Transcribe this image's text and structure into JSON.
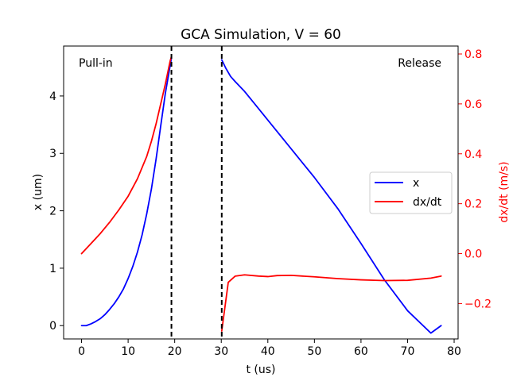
{
  "chart_data": {
    "type": "line",
    "title": "GCA Simulation, V = 60",
    "xlabel": "t (us)",
    "ylabel_left": "x (um)",
    "ylabel_right": "dx/dt (m/s)",
    "xlim": [
      -3.85,
      80.85
    ],
    "ylim_left": [
      -0.232,
      4.87
    ],
    "ylim_right": [
      -0.3418,
      0.8318
    ],
    "x_ticks": [
      0,
      10,
      20,
      30,
      40,
      50,
      60,
      70,
      80
    ],
    "y_ticks_left": [
      0,
      1,
      2,
      3,
      4
    ],
    "y_ticks_right": [
      -0.2,
      0.0,
      0.2,
      0.4,
      0.6,
      0.8
    ],
    "tick_labels_right": [
      "−0.2",
      "0.0",
      "0.2",
      "0.4",
      "0.6",
      "0.8"
    ],
    "grid": false,
    "legend_position": "center-right",
    "vlines": [
      19.3,
      30.1
    ],
    "annotations": [
      {
        "text": "Pull-in",
        "position": "top-left"
      },
      {
        "text": "Release",
        "position": "top-right"
      }
    ],
    "series": [
      {
        "name": "x",
        "color": "#0000ff",
        "axis": "left",
        "segments": [
          {
            "x": [
              0,
              1,
              2,
              3,
              4,
              5,
              6,
              7,
              8,
              9,
              10,
              11,
              12,
              13,
              14,
              15,
              16,
              17,
              18,
              19.3
            ],
            "y": [
              0.0,
              0.0,
              0.03,
              0.07,
              0.12,
              0.19,
              0.28,
              0.38,
              0.5,
              0.64,
              0.82,
              1.03,
              1.28,
              1.58,
              1.95,
              2.38,
              2.9,
              3.48,
              4.05,
              4.66
            ]
          },
          {
            "x": [
              30.1,
              31,
              32,
              33,
              35,
              38,
              40,
              45,
              50,
              55,
              60,
              65,
              70,
              75,
              77.2
            ],
            "y": [
              4.63,
              4.48,
              4.34,
              4.25,
              4.08,
              3.78,
              3.58,
              3.08,
              2.58,
              2.04,
              1.43,
              0.8,
              0.26,
              -0.13,
              0.0
            ]
          }
        ]
      },
      {
        "name": "dx/dt",
        "color": "#ff0000",
        "axis": "right",
        "segments": [
          {
            "x": [
              0,
              2,
              4,
              6,
              8,
              10,
              12,
              14,
              15,
              16,
              17,
              18,
              19,
              19.3
            ],
            "y": [
              0.0,
              0.04,
              0.08,
              0.125,
              0.175,
              0.23,
              0.3,
              0.39,
              0.45,
              0.52,
              0.6,
              0.68,
              0.77,
              0.79
            ]
          },
          {
            "x": [
              30.1,
              31.5,
              33,
              35,
              38,
              40,
              42,
              45,
              50,
              55,
              60,
              65,
              70,
              75,
              77.2
            ],
            "y": [
              -0.31,
              -0.115,
              -0.09,
              -0.085,
              -0.09,
              -0.092,
              -0.088,
              -0.087,
              -0.093,
              -0.1,
              -0.105,
              -0.108,
              -0.107,
              -0.098,
              -0.09
            ]
          }
        ]
      }
    ]
  }
}
